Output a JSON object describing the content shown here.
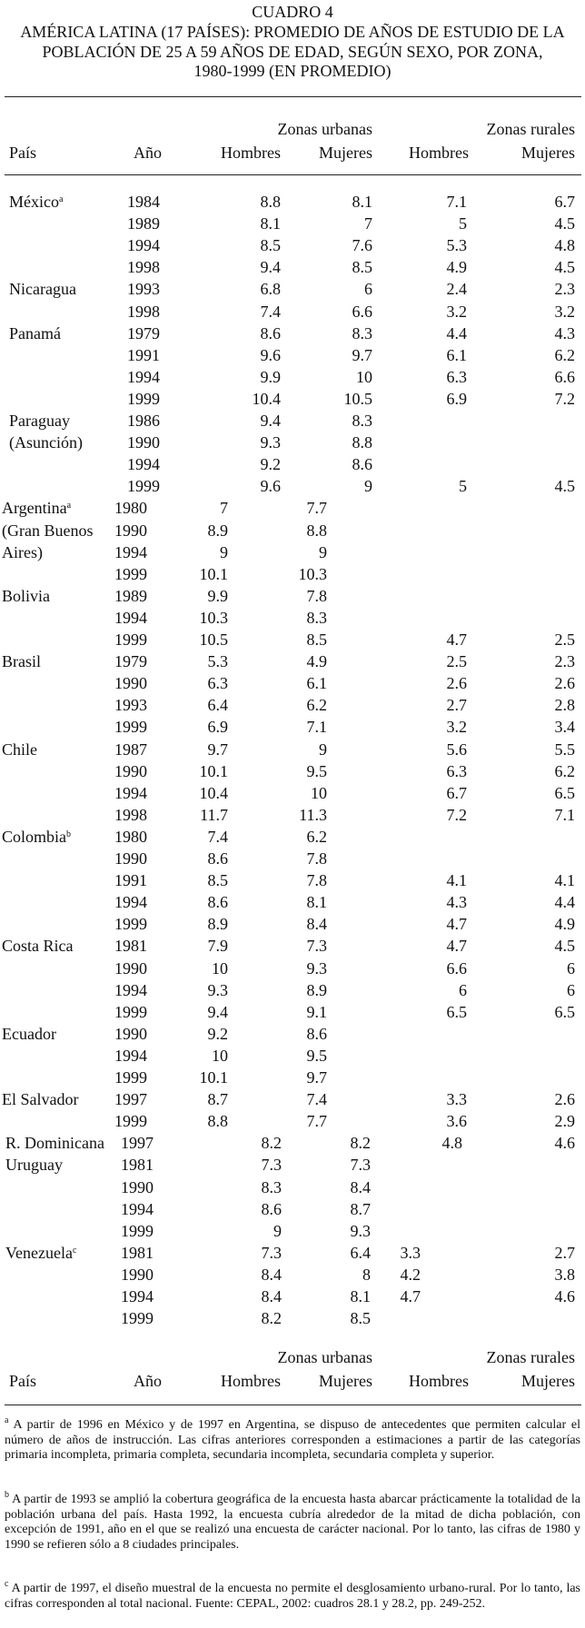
{
  "title": {
    "number": "CUADRO 4",
    "line1": "AMÉRICA LATINA (17 PAÍSES): PROMEDIO DE AÑOS DE ESTUDIO DE LA",
    "line2": "POBLACIÓN DE 25 A 59 AÑOS DE EDAD, SEGÚN SEXO, POR ZONA,",
    "line3": "1980-1999 (EN PROMEDIO)"
  },
  "header": {
    "zonas_urbanas": "Zonas urbanas",
    "zonas_rurales": "Zonas rurales",
    "pais": "País",
    "anio": "Año",
    "hombres": "Hombres",
    "mujeres": "Mujeres"
  },
  "sections": [
    {
      "rows": [
        {
          "pais": "México",
          "sup": "a",
          "anio": "1984",
          "hu": "8.8",
          "mu": "8.1",
          "hr": "7.1",
          "mr": "6.7"
        },
        {
          "pais": "",
          "anio": "1989",
          "hu": "8.1",
          "mu": "7",
          "hr": "5",
          "mr": "4.5"
        },
        {
          "pais": "",
          "anio": "1994",
          "hu": "8.5",
          "mu": "7.6",
          "hr": "5.3",
          "mr": "4.8"
        },
        {
          "pais": "",
          "anio": "1998",
          "hu": "9.4",
          "mu": "8.5",
          "hr": "4.9",
          "mr": "4.5"
        },
        {
          "pais": "Nicaragua",
          "anio": "1993",
          "hu": "6.8",
          "mu": "6",
          "hr": "2.4",
          "mr": "2.3"
        },
        {
          "pais": "",
          "anio": "1998",
          "hu": "7.4",
          "mu": "6.6",
          "hr": "3.2",
          "mr": "3.2"
        },
        {
          "pais": "Panamá",
          "anio": "1979",
          "hu": "8.6",
          "mu": "8.3",
          "hr": "4.4",
          "mr": "4.3"
        },
        {
          "pais": "",
          "anio": "1991",
          "hu": "9.6",
          "mu": "9.7",
          "hr": "6.1",
          "mr": "6.2"
        },
        {
          "pais": "",
          "anio": "1994",
          "hu": "9.9",
          "mu": "10",
          "hr": "6.3",
          "mr": "6.6"
        },
        {
          "pais": "",
          "anio": "1999",
          "hu": "10.4",
          "mu": "10.5",
          "hr": "6.9",
          "mr": "7.2"
        },
        {
          "pais": "Paraguay",
          "anio": "1986",
          "hu": "9.4",
          "mu": "8.3",
          "hr": "",
          "mr": ""
        },
        {
          "pais": "(Asunción)",
          "anio": "1990",
          "hu": "9.3",
          "mu": "8.8",
          "hr": "",
          "mr": ""
        },
        {
          "pais": "",
          "anio": "1994",
          "hu": "9.2",
          "mu": "8.6",
          "hr": "",
          "mr": ""
        },
        {
          "pais": "",
          "anio": "1999",
          "hu": "9.6",
          "mu": "9",
          "hr": "5",
          "mr": "4.5"
        }
      ]
    },
    {
      "rows": [
        {
          "pais": "Argentina",
          "sup": "a",
          "anio": "1980",
          "hu": "7",
          "mu": "7.7",
          "hr": "",
          "mr": ""
        },
        {
          "pais": "(Gran Buenos",
          "anio": "1990",
          "hu": "8.9",
          "mu": "8.8",
          "hr": "",
          "mr": ""
        },
        {
          "pais": "Aires)",
          "anio": "1994",
          "hu": "9",
          "mu": "9",
          "hr": "",
          "mr": ""
        },
        {
          "pais": "",
          "anio": "1999",
          "hu": "10.1",
          "mu": "10.3",
          "hr": "",
          "mr": ""
        },
        {
          "pais": "Bolivia",
          "anio": "1989",
          "hu": "9.9",
          "mu": "7.8",
          "hr": "",
          "mr": ""
        },
        {
          "pais": "",
          "anio": "1994",
          "hu": "10.3",
          "mu": "8.3",
          "hr": "",
          "mr": ""
        },
        {
          "pais": "",
          "anio": "1999",
          "hu": "10.5",
          "mu": "8.5",
          "hr": "4.7",
          "mr": "2.5"
        },
        {
          "pais": "Brasil",
          "anio": "1979",
          "hu": "5.3",
          "mu": "4.9",
          "hr": "2.5",
          "mr": "2.3"
        },
        {
          "pais": "",
          "anio": "1990",
          "hu": "6.3",
          "mu": "6.1",
          "hr": "2.6",
          "mr": "2.6"
        },
        {
          "pais": "",
          "anio": "1993",
          "hu": "6.4",
          "mu": "6.2",
          "hr": "2.7",
          "mr": "2.8"
        },
        {
          "pais": "",
          "anio": "1999",
          "hu": "6.9",
          "mu": "7.1",
          "hr": "3.2",
          "mr": "3.4"
        },
        {
          "pais": "Chile",
          "anio": "1987",
          "hu": "9.7",
          "mu": "9",
          "hr": "5.6",
          "mr": "5.5"
        },
        {
          "pais": "",
          "anio": "1990",
          "hu": "10.1",
          "mu": "9.5",
          "hr": "6.3",
          "mr": "6.2"
        },
        {
          "pais": "",
          "anio": "1994",
          "hu": "10.4",
          "mu": "10",
          "hr": "6.7",
          "mr": "6.5"
        },
        {
          "pais": "",
          "anio": "1998",
          "hu": "11.7",
          "mu": "11.3",
          "hr": "7.2",
          "mr": "7.1"
        },
        {
          "pais": "Colombia",
          "sup": "b",
          "anio": "1980",
          "hu": "7.4",
          "mu": "6.2",
          "hr": "",
          "mr": ""
        },
        {
          "pais": "",
          "anio": "1990",
          "hu": "8.6",
          "mu": "7.8",
          "hr": "",
          "mr": ""
        },
        {
          "pais": "",
          "anio": "1991",
          "hu": "8.5",
          "mu": "7.8",
          "hr": "4.1",
          "mr": "4.1"
        },
        {
          "pais": "",
          "anio": "1994",
          "hu": "8.6",
          "mu": "8.1",
          "hr": "4.3",
          "mr": "4.4"
        },
        {
          "pais": "",
          "anio": "1999",
          "hu": "8.9",
          "mu": "8.4",
          "hr": "4.7",
          "mr": "4.9"
        },
        {
          "pais": "Costa Rica",
          "anio": "1981",
          "hu": "7.9",
          "mu": "7.3",
          "hr": "4.7",
          "mr": "4.5"
        },
        {
          "pais": "",
          "anio": "1990",
          "hu": "10",
          "mu": "9.3",
          "hr": "6.6",
          "mr": "6"
        },
        {
          "pais": "",
          "anio": "1994",
          "hu": "9.3",
          "mu": "8.9",
          "hr": "6",
          "mr": "6"
        },
        {
          "pais": "",
          "anio": "1999",
          "hu": "9.4",
          "mu": "9.1",
          "hr": "6.5",
          "mr": "6.5"
        },
        {
          "pais": "Ecuador",
          "anio": "1990",
          "hu": "9.2",
          "mu": "8.6",
          "hr": "",
          "mr": ""
        },
        {
          "pais": "",
          "anio": "1994",
          "hu": "10",
          "mu": "9.5",
          "hr": "",
          "mr": ""
        },
        {
          "pais": "",
          "anio": "1999",
          "hu": "10.1",
          "mu": "9.7",
          "hr": "",
          "mr": ""
        },
        {
          "pais": "El Salvador",
          "anio": "1997",
          "hu": "8.7",
          "mu": "7.4",
          "hr": "3.3",
          "mr": "2.6"
        },
        {
          "pais": "",
          "anio": "1999",
          "hu": "8.8",
          "mu": "7.7",
          "hr": "3.6",
          "mr": "2.9"
        }
      ]
    },
    {
      "rows": [
        {
          "pais": "R. Dominicana",
          "anio": "1997",
          "hu": "8.2",
          "mu": "8.2",
          "hr": "4.8",
          "mr": "4.6"
        },
        {
          "pais": "Uruguay",
          "anio": "1981",
          "hu": "7.3",
          "mu": "7.3",
          "hr": "",
          "mr": ""
        },
        {
          "pais": "",
          "anio": "1990",
          "hu": "8.3",
          "mu": "8.4",
          "hr": "",
          "mr": ""
        },
        {
          "pais": "",
          "anio": "1994",
          "hu": "8.6",
          "mu": "8.7",
          "hr": "",
          "mr": ""
        },
        {
          "pais": "",
          "anio": "1999",
          "hu": "9",
          "mu": "9.3",
          "hr": "",
          "mr": ""
        },
        {
          "pais": "Venezuela",
          "sup": "c",
          "anio": "1981",
          "hu": "7.3",
          "mu": "6.4",
          "hr": "3.3",
          "mr": "2.7"
        },
        {
          "pais": "",
          "anio": "1990",
          "hu": "8.4",
          "mu": "8",
          "hr": "4.2",
          "mr": "3.8"
        },
        {
          "pais": "",
          "anio": "1994",
          "hu": "8.4",
          "mu": "8.1",
          "hr": "4.7",
          "mr": "4.6"
        },
        {
          "pais": "",
          "anio": "1999",
          "hu": "8.2",
          "mu": "8.5",
          "hr": "",
          "mr": ""
        }
      ]
    }
  ],
  "footnotes": [
    {
      "mark": "a",
      "text": "A partir de 1996 en México y de 1997 en Argentina, se dispuso de antecedentes que permiten calcular el número de años de instrucción. Las cifras anteriores corresponden a estimaciones a partir de las categorías primaria incompleta, primaria completa, secundaria incompleta, secundaria completa y superior."
    },
    {
      "mark": "b",
      "text": "A partir de 1993 se amplió la cobertura geográfica de la encuesta hasta abarcar prácticamente la totalidad de la población urbana del país. Hasta 1992, la encuesta cubría alrededor de la mitad de dicha población, con excepción de 1991, año en el que se realizó una encuesta de carácter nacional. Por lo tanto, las cifras de 1980 y 1990 se refieren sólo a 8 ciudades principales."
    },
    {
      "mark": "c",
      "text": "A partir de 1997, el diseño muestral de la encuesta no permite el desglosamiento urbano-rural. Por lo tanto, las cifras corresponden al total nacional. Fuente: CEPAL, 2002: cuadros 28.1 y 28.2, pp. 249-252."
    }
  ]
}
